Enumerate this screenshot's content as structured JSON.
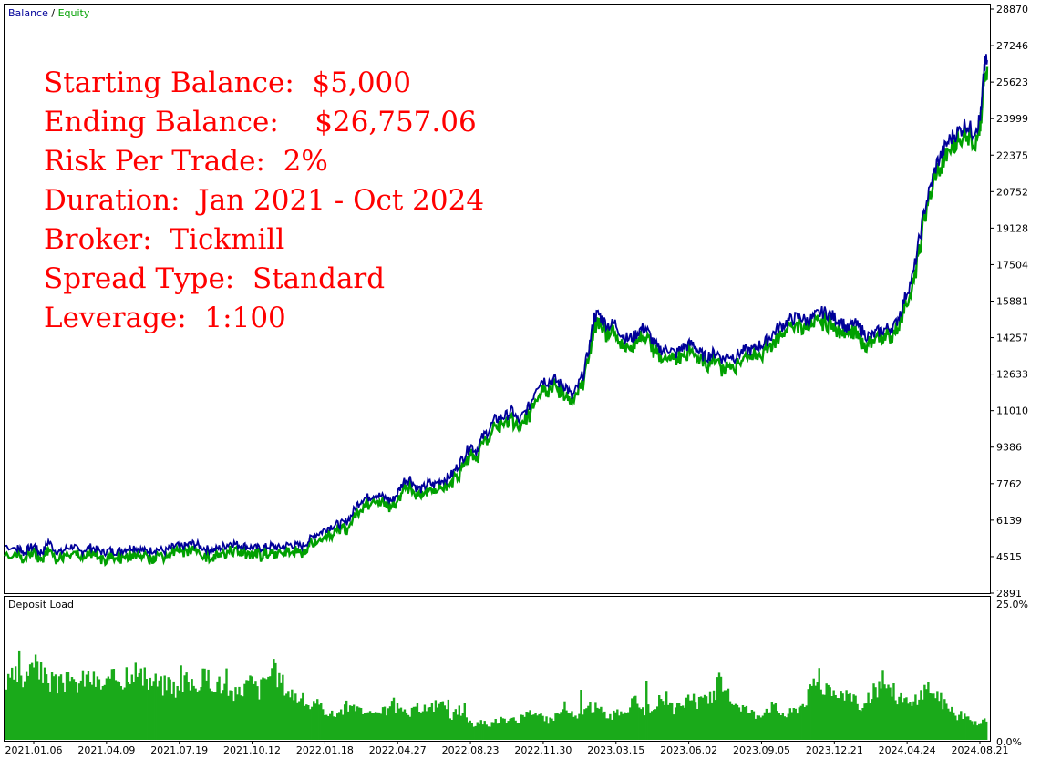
{
  "legend": {
    "balance_label": "Balance",
    "separator": " / ",
    "equity_label": "Equity"
  },
  "stats": [
    "Starting Balance:  $5,000",
    "Ending Balance:    $26,757.06",
    "Risk Per Trade:  2%",
    "Duration:  Jan 2021 - Oct 2024",
    "Broker:  Tickmill",
    "Spread Type:  Standard",
    "Leverage:  1:100"
  ],
  "colors": {
    "balance": "#000099",
    "equity": "#00a000",
    "deposit_load": "#1aaa1a",
    "stats_text": "#ff0000",
    "frame": "#000000"
  },
  "chart_data": [
    {
      "type": "line",
      "series": [
        {
          "name": "Balance",
          "color": "#000099"
        },
        {
          "name": "Equity",
          "color": "#00a000"
        }
      ],
      "x": [
        "2021.01.06",
        "2021.04.09",
        "2021.07.19",
        "2021.10.12",
        "2022.01.18",
        "2022.04.27",
        "2022.08.23",
        "2022.11.30",
        "2023.03.15",
        "2023.06.02",
        "2023.09.05",
        "2023.12.21",
        "2024.04.24",
        "2024.08.21"
      ],
      "balance_points": [
        [
          0,
          5000
        ],
        [
          1.7,
          4900
        ],
        [
          2.2,
          4850
        ],
        [
          2.6,
          4650
        ],
        [
          3.3,
          4900
        ],
        [
          4.1,
          5000
        ],
        [
          4.6,
          4700
        ],
        [
          5.2,
          4750
        ],
        [
          5.9,
          5200
        ],
        [
          6.8,
          4800
        ],
        [
          7.6,
          4700
        ],
        [
          8.4,
          4900
        ],
        [
          9.3,
          5000
        ],
        [
          10.1,
          4700
        ],
        [
          10.9,
          4850
        ],
        [
          11.7,
          4950
        ],
        [
          12.5,
          4800
        ],
        [
          13.3,
          4700
        ],
        [
          14.1,
          4800
        ],
        [
          14.9,
          4750
        ],
        [
          15.8,
          4800
        ],
        [
          16.6,
          4900
        ],
        [
          17.4,
          4950
        ],
        [
          18.2,
          4850
        ],
        [
          19.0,
          4750
        ],
        [
          19.8,
          4800
        ],
        [
          20.6,
          4850
        ],
        [
          21.6,
          4750
        ],
        [
          22.4,
          4900
        ],
        [
          23.2,
          5000
        ],
        [
          24.0,
          4950
        ],
        [
          24.8,
          5050
        ],
        [
          25.6,
          5100
        ],
        [
          26.4,
          4950
        ],
        [
          27.3,
          4850
        ],
        [
          28.1,
          4800
        ],
        [
          28.9,
          4900
        ],
        [
          29.7,
          5000
        ],
        [
          30.5,
          5150
        ],
        [
          31.3,
          5050
        ],
        [
          32.1,
          5000
        ],
        [
          32.9,
          4950
        ],
        [
          33.7,
          4900
        ],
        [
          34.5,
          4900
        ],
        [
          35.3,
          4950
        ],
        [
          36.1,
          5000
        ],
        [
          36.9,
          4900
        ],
        [
          37.7,
          5000
        ],
        [
          38.5,
          5050
        ],
        [
          39.3,
          5000
        ],
        [
          40.2,
          5000
        ],
        [
          41.0,
          5250
        ],
        [
          41.8,
          5500
        ],
        [
          42.6,
          5600
        ],
        [
          43.4,
          5800
        ],
        [
          44.2,
          5900
        ],
        [
          45.0,
          5950
        ],
        [
          45.8,
          6000
        ],
        [
          46.6,
          6300
        ],
        [
          47.4,
          6800
        ],
        [
          48.2,
          7100
        ],
        [
          49.0,
          7150
        ],
        [
          49.8,
          7300
        ],
        [
          50.6,
          7200
        ],
        [
          51.4,
          7100
        ],
        [
          52.2,
          7000
        ],
        [
          53.0,
          7400
        ],
        [
          53.8,
          7900
        ],
        [
          54.6,
          8000
        ],
        [
          55.4,
          7600
        ],
        [
          56.2,
          7500
        ],
        [
          57.0,
          7800
        ],
        [
          57.8,
          7700
        ],
        [
          58.7,
          7900
        ],
        [
          59.5,
          8000
        ],
        [
          60.3,
          8200
        ],
        [
          61.1,
          8600
        ],
        [
          61.9,
          9000
        ],
        [
          62.7,
          9500
        ],
        [
          63.5,
          9200
        ],
        [
          64.3,
          9800
        ],
        [
          65.1,
          10100
        ],
        [
          66.0,
          10600
        ],
        [
          66.8,
          10700
        ],
        [
          67.6,
          10800
        ],
        [
          68.4,
          11000
        ],
        [
          69.2,
          10500
        ],
        [
          70.0,
          10900
        ],
        [
          70.8,
          11300
        ],
        [
          71.6,
          12100
        ],
        [
          72.4,
          12400
        ],
        [
          73.2,
          12300
        ],
        [
          74.0,
          12400
        ],
        [
          74.8,
          12200
        ],
        [
          75.6,
          12100
        ],
        [
          76.4,
          11600
        ],
        [
          77.2,
          12100
        ],
        [
          78.0,
          12700
        ],
        [
          78.8,
          14000
        ],
        [
          79.4,
          15200
        ],
        [
          80.0,
          15300
        ],
        [
          80.6,
          15000
        ],
        [
          81.4,
          14800
        ],
        [
          82.2,
          14900
        ],
        [
          83.1,
          14400
        ],
        [
          83.9,
          14200
        ],
        [
          84.7,
          14300
        ],
        [
          85.5,
          14600
        ],
        [
          86.3,
          14700
        ],
        [
          87.1,
          14200
        ],
        [
          87.9,
          13800
        ],
        [
          88.7,
          13700
        ],
        [
          89.5,
          13800
        ],
        [
          90.3,
          13500
        ],
        [
          91.1,
          13800
        ],
        [
          91.9,
          13900
        ],
        [
          92.7,
          14000
        ],
        [
          93.5,
          13600
        ],
        [
          94.3,
          13400
        ],
        [
          95.1,
          13500
        ],
        [
          95.9,
          13600
        ],
        [
          96.7,
          13300
        ],
        [
          97.5,
          13500
        ],
        [
          98.3,
          13400
        ],
        [
          99.1,
          13600
        ],
        [
          99.9,
          13700
        ],
        [
          100.7,
          13700
        ],
        [
          101.5,
          13900
        ],
        [
          102.3,
          14000
        ],
        [
          103.1,
          14300
        ],
        [
          103.9,
          14600
        ],
        [
          104.7,
          14800
        ],
        [
          105.5,
          15000
        ],
        [
          106.3,
          15100
        ],
        [
          107.1,
          15200
        ],
        [
          107.9,
          15000
        ],
        [
          108.7,
          15100
        ],
        [
          109.5,
          15300
        ],
        [
          110.3,
          15400
        ],
        [
          111.1,
          15300
        ],
        [
          111.9,
          15100
        ],
        [
          112.7,
          15000
        ],
        [
          113.5,
          14600
        ],
        [
          114.3,
          14900
        ],
        [
          115.1,
          14700
        ],
        [
          115.9,
          14400
        ],
        [
          116.7,
          14300
        ],
        [
          117.5,
          14500
        ],
        [
          118.3,
          14600
        ],
        [
          119.1,
          14700
        ],
        [
          119.9,
          14800
        ],
        [
          120.7,
          15500
        ],
        [
          121.5,
          16300
        ],
        [
          122.3,
          17000
        ],
        [
          123.1,
          18500
        ],
        [
          123.9,
          20000
        ],
        [
          124.7,
          21000
        ],
        [
          125.5,
          22000
        ],
        [
          126.3,
          22500
        ],
        [
          127.1,
          23000
        ],
        [
          127.9,
          23300
        ],
        [
          128.7,
          23500
        ],
        [
          129.5,
          23800
        ],
        [
          130.3,
          23400
        ],
        [
          131.1,
          23800
        ],
        [
          131.5,
          24300
        ],
        [
          131.9,
          26300
        ],
        [
          132.3,
          26600
        ]
      ],
      "ylim": [
        2891,
        28870
      ],
      "yticks": [
        28870,
        27246,
        25623,
        23999,
        22375,
        20752,
        19128,
        17504,
        15881,
        14257,
        12633,
        11010,
        9386,
        7762,
        6139,
        4515,
        2891
      ]
    },
    {
      "type": "bar",
      "title": "Deposit Load",
      "ylim_labels": [
        "25.0%",
        "0.0%"
      ],
      "ylim": [
        0,
        25
      ],
      "envelope": [
        [
          0,
          11
        ],
        [
          1,
          13
        ],
        [
          2,
          12
        ],
        [
          3,
          14
        ],
        [
          4,
          15
        ],
        [
          5,
          13
        ],
        [
          6,
          12
        ],
        [
          7,
          11
        ],
        [
          8,
          12
        ],
        [
          9,
          11
        ],
        [
          10,
          12
        ],
        [
          11,
          13
        ],
        [
          12,
          12
        ],
        [
          13,
          11
        ],
        [
          14,
          12
        ],
        [
          15,
          13
        ],
        [
          16,
          12
        ],
        [
          17,
          15
        ],
        [
          18,
          13
        ],
        [
          19,
          12
        ],
        [
          20,
          12
        ],
        [
          21,
          11
        ],
        [
          22,
          12
        ],
        [
          23,
          10
        ],
        [
          24,
          12
        ],
        [
          25,
          11
        ],
        [
          26,
          12
        ],
        [
          27,
          13
        ],
        [
          28,
          12
        ],
        [
          29,
          11
        ],
        [
          30,
          10
        ],
        [
          31,
          9
        ],
        [
          32,
          11
        ],
        [
          33,
          12
        ],
        [
          34,
          10
        ],
        [
          35,
          13
        ],
        [
          36,
          14
        ],
        [
          37,
          12
        ],
        [
          38,
          10
        ],
        [
          39,
          9
        ],
        [
          40,
          8
        ],
        [
          41,
          7
        ],
        [
          42,
          7
        ],
        [
          43,
          6
        ],
        [
          44,
          5
        ],
        [
          45,
          6
        ],
        [
          46,
          7
        ],
        [
          47,
          6
        ],
        [
          48,
          6
        ],
        [
          49,
          5
        ],
        [
          50,
          5
        ],
        [
          51,
          6
        ],
        [
          52,
          7
        ],
        [
          53,
          6
        ],
        [
          54,
          5
        ],
        [
          55,
          6
        ],
        [
          56,
          7
        ],
        [
          57,
          6
        ],
        [
          58,
          8
        ],
        [
          59,
          6
        ],
        [
          60,
          5
        ],
        [
          61,
          6
        ],
        [
          62,
          4
        ],
        [
          63,
          3
        ],
        [
          64,
          4
        ],
        [
          65,
          3
        ],
        [
          66,
          4
        ],
        [
          67,
          4
        ],
        [
          68,
          5
        ],
        [
          69,
          4
        ],
        [
          70,
          5
        ],
        [
          71,
          6
        ],
        [
          72,
          5
        ],
        [
          73,
          4
        ],
        [
          74,
          5
        ],
        [
          75,
          6
        ],
        [
          76,
          5
        ],
        [
          77,
          5
        ],
        [
          78,
          6
        ],
        [
          79,
          7
        ],
        [
          80,
          6
        ],
        [
          81,
          5
        ],
        [
          82,
          5
        ],
        [
          83,
          6
        ],
        [
          84,
          7
        ],
        [
          85,
          8
        ],
        [
          86,
          6
        ],
        [
          87,
          7
        ],
        [
          88,
          8
        ],
        [
          89,
          7
        ],
        [
          90,
          6
        ],
        [
          91,
          7
        ],
        [
          92,
          9
        ],
        [
          93,
          7
        ],
        [
          94,
          10
        ],
        [
          95,
          8
        ],
        [
          96,
          12
        ],
        [
          97,
          9
        ],
        [
          98,
          8
        ],
        [
          99,
          7
        ],
        [
          100,
          6
        ],
        [
          101,
          5
        ],
        [
          102,
          6
        ],
        [
          103,
          7
        ],
        [
          104,
          6
        ],
        [
          105,
          5
        ],
        [
          106,
          6
        ],
        [
          107,
          7
        ],
        [
          108,
          9
        ],
        [
          109,
          12
        ],
        [
          110,
          11
        ],
        [
          111,
          9
        ],
        [
          112,
          8
        ],
        [
          113,
          10
        ],
        [
          114,
          8
        ],
        [
          115,
          7
        ],
        [
          116,
          8
        ],
        [
          117,
          10
        ],
        [
          118,
          12
        ],
        [
          119,
          11
        ],
        [
          120,
          9
        ],
        [
          121,
          8
        ],
        [
          122,
          7
        ],
        [
          123,
          9
        ],
        [
          124,
          11
        ],
        [
          125,
          10
        ],
        [
          126,
          8
        ],
        [
          127,
          6
        ],
        [
          128,
          5
        ],
        [
          129,
          5
        ],
        [
          130,
          4
        ],
        [
          131,
          3
        ],
        [
          132,
          4
        ]
      ]
    }
  ]
}
